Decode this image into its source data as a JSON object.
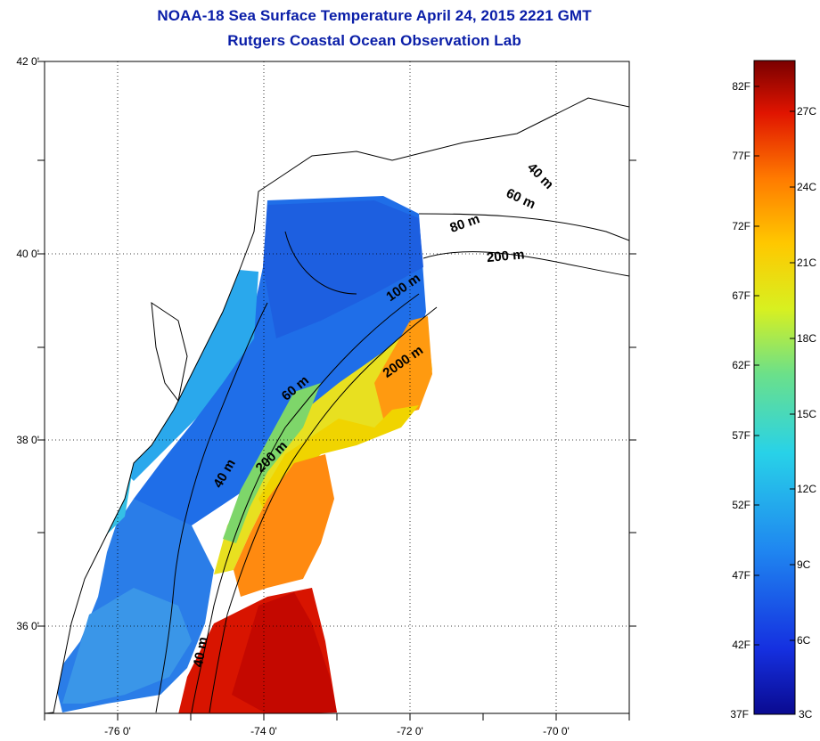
{
  "title": "NOAA-18 Sea Surface Temperature April 24, 2015 2221 GMT",
  "subtitle": "Rutgers Coastal Ocean Observation Lab",
  "map": {
    "lat_labels": [
      "42 0'",
      "40 0'",
      "38 0'",
      "36 0'"
    ],
    "lon_labels": [
      "-76 0'",
      "-74 0'",
      "-72 0'",
      "-70 0'"
    ],
    "lat_range": [
      35,
      42
    ],
    "lon_range": [
      -77,
      -69
    ],
    "grid": "dotted",
    "contours": [
      "40 m",
      "60 m",
      "80 m",
      "200 m",
      "100 m",
      "2000 m",
      "60 m",
      "200 m",
      "40 m",
      "40 m"
    ]
  },
  "colorbar": {
    "fahrenheit_labels": [
      "82F",
      "77F",
      "72F",
      "67F",
      "62F",
      "57F",
      "52F",
      "47F",
      "42F",
      "37F"
    ],
    "celsius_labels": [
      "27C",
      "24C",
      "21C",
      "18C",
      "15C",
      "12C",
      "9C",
      "6C",
      "3C"
    ],
    "colors": [
      "#7f0000",
      "#d40000",
      "#ff3a00",
      "#ff8c00",
      "#ffd000",
      "#e4f000",
      "#9be34a",
      "#3fd6a8",
      "#20b8f0",
      "#1f7cf0",
      "#1a3fe0",
      "#1010a0"
    ]
  }
}
